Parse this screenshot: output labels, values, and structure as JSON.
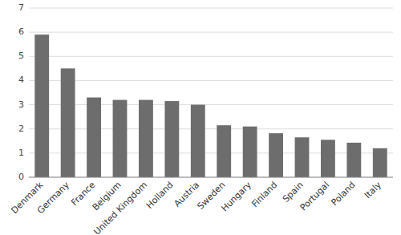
{
  "chart_data": {
    "type": "bar",
    "categories": [
      "Denmark",
      "Germany",
      "France",
      "Belgium",
      "United Kingdom",
      "Holland",
      "Austria",
      "Sweden",
      "Hungary",
      "Finland",
      "Spain",
      "Portugal",
      "Poland",
      "Italy"
    ],
    "values": [
      5.9,
      4.5,
      3.3,
      3.2,
      3.2,
      3.15,
      3.0,
      2.15,
      2.1,
      1.82,
      1.65,
      1.55,
      1.43,
      1.2
    ],
    "color": "#6d6d6d",
    "ylim": [
      0,
      7
    ],
    "yticks": [
      0,
      1,
      2,
      3,
      4,
      5,
      6,
      7
    ],
    "grid": true
  }
}
